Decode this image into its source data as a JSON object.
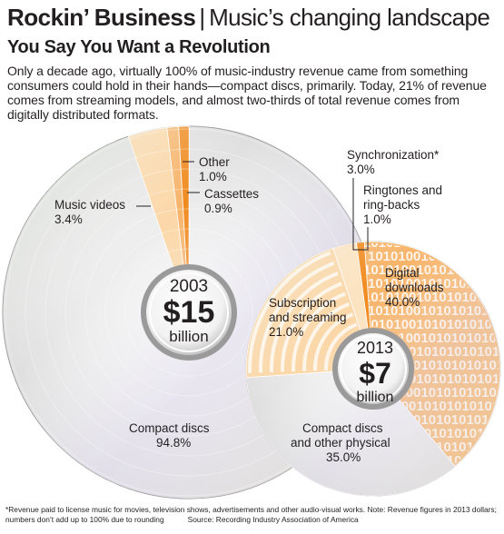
{
  "header": {
    "brand": "Rockin’ Business",
    "separator": "|",
    "section": "Music’s changing landscape"
  },
  "subhead": "You Say You Want a Revolution",
  "intro": "Only a decade ago, virtually 100% of music-industry revenue came from something consumers could hold in their hands—compact discs, primarily. Today, 21% of revenue comes from streaming models, and almost two-thirds of total revenue comes from digitally distributed formats.",
  "colors": {
    "physical": "#e8e8e8",
    "orange_light": "#fbd7a8",
    "orange_mid": "#f7b46a",
    "orange_dark": "#f08a1e",
    "outline": "#231f20"
  },
  "chart_data": [
    {
      "type": "pie",
      "year": "2003",
      "total": "$15",
      "unit": "billion",
      "slices": [
        {
          "label": "Compact discs",
          "value": 94.8,
          "display": "94.8%"
        },
        {
          "label": "Music videos",
          "value": 3.4,
          "display": "3.4%",
          "footnote_mark": "*"
        },
        {
          "label": "Other",
          "value": 1.0,
          "display": "1.0%"
        },
        {
          "label": "Cassettes",
          "value": 0.9,
          "display": "0.9%"
        }
      ]
    },
    {
      "type": "pie",
      "year": "2013",
      "total": "$7",
      "unit": "billion",
      "slices": [
        {
          "label": "Digital downloads",
          "value": 40.0,
          "display": "40.0%"
        },
        {
          "label": "Compact discs and other physical",
          "value": 35.0,
          "display": "35.0%"
        },
        {
          "label": "Subscription and streaming",
          "value": 21.0,
          "display": "21.0%"
        },
        {
          "label": "Synchronization*",
          "value": 3.0,
          "display": "3.0%"
        },
        {
          "label": "Ringtones and ring-backs",
          "value": 1.0,
          "display": "1.0%"
        }
      ]
    }
  ],
  "labels": {
    "other_name": "Other",
    "other_value": "1.0%",
    "cassettes_name": "Cassettes",
    "cassettes_value": "0.9%",
    "videos_name": "Music videos",
    "videos_value": "3.4%",
    "cd_name": "Compact discs",
    "cd_value": "94.8%",
    "sync_name": "Synchronization*",
    "sync_value": "3.0%",
    "ring_name1": "Ringtones and",
    "ring_name2": "ring-backs",
    "ring_value": "1.0%",
    "dd_name1": "Digital",
    "dd_name2": "downloads",
    "dd_value": "40.0%",
    "sub_name1": "Subscription",
    "sub_name2": "and streaming",
    "sub_value": "21.0%",
    "phys_name1": "Compact discs",
    "phys_name2": "and other physical",
    "phys_value": "35.0%",
    "binary_pattern": "1010100101010"
  },
  "footnote": {
    "line1": "*Revenue paid to license music for movies, television shows, advertisements and other audio-visual works.  Note: Revenue figures in 2013 dollars;",
    "line2": "numbers don’t add up to 100% due to rounding",
    "source": "Source: Recording Industry Association of America"
  }
}
